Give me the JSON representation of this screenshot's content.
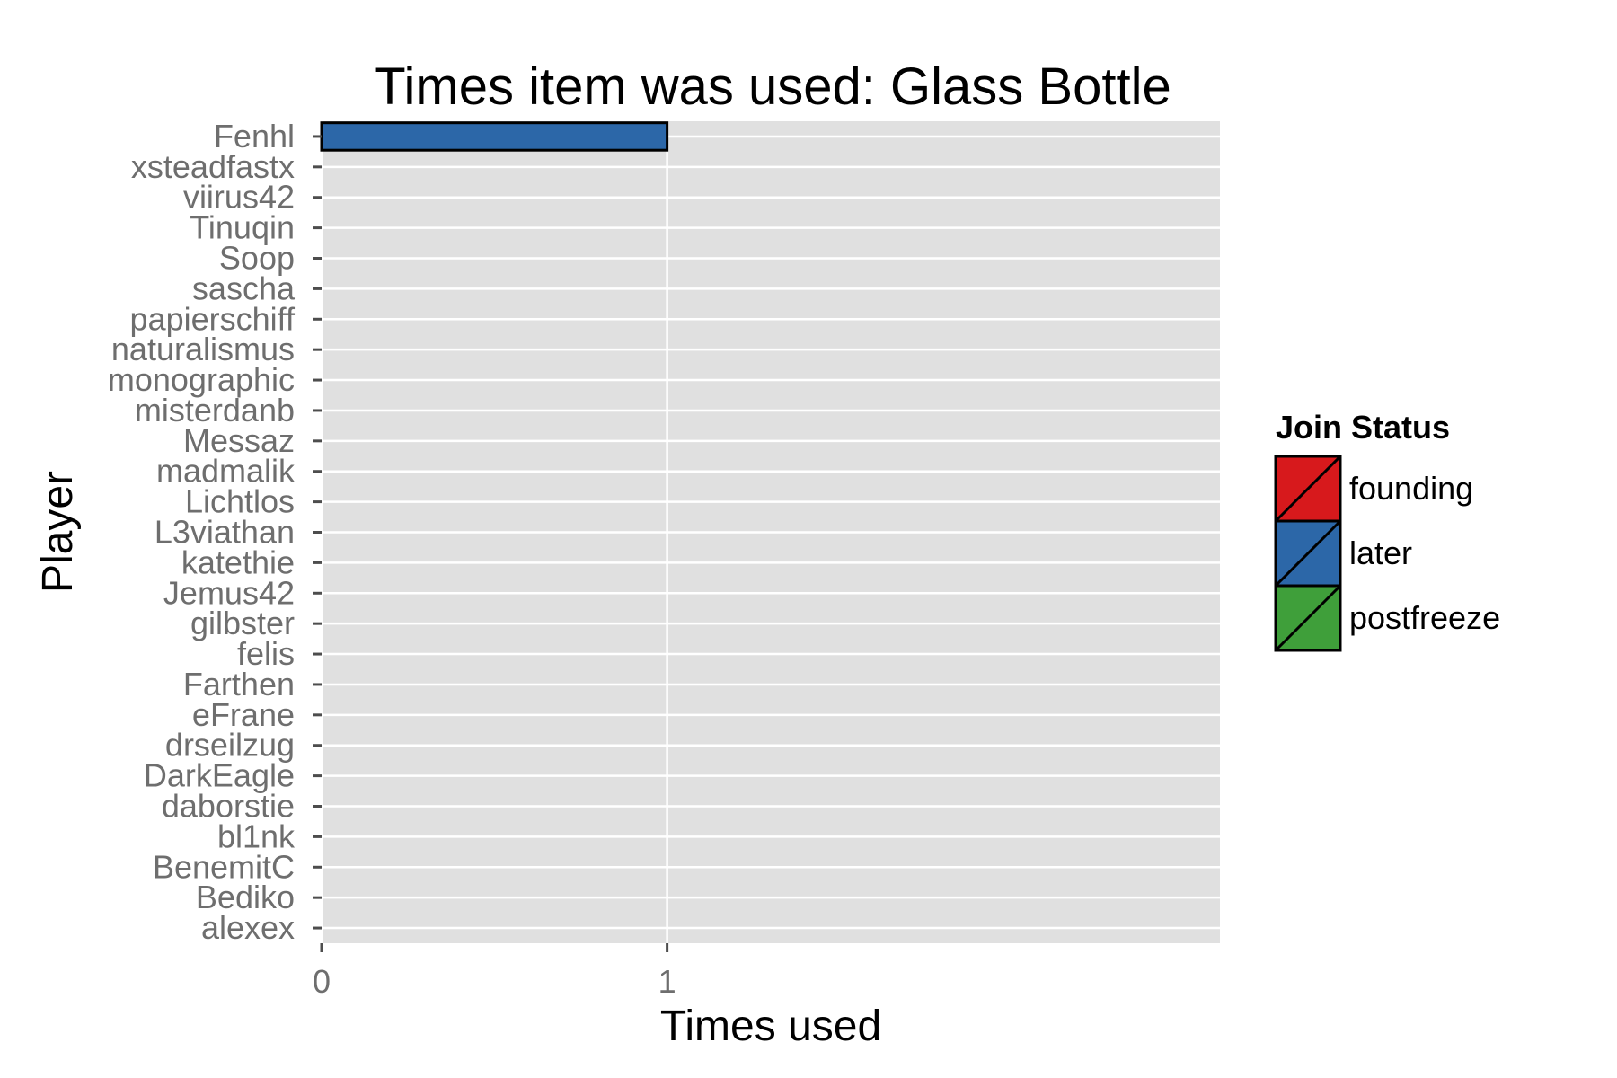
{
  "chart_data": {
    "type": "bar",
    "orientation": "horizontal",
    "title": "Times item was used: Glass Bottle",
    "xlabel": "Times used",
    "ylabel": "Player",
    "xlim": [
      0,
      2.6
    ],
    "xticks": [
      0,
      1
    ],
    "categories": [
      "alexex",
      "Bediko",
      "BenemitC",
      "bl1nk",
      "daborstie",
      "DarkEagle",
      "drseilzug",
      "eFrane",
      "Farthen",
      "felis",
      "gilbster",
      "Jemus42",
      "katethie",
      "L3viathan",
      "Lichtlos",
      "madmalik",
      "Messaz",
      "misterdanb",
      "monographic",
      "naturalismus",
      "papierschiff",
      "sascha",
      "Soop",
      "Tinuqin",
      "viirus42",
      "xsteadfastx",
      "Fenhl"
    ],
    "values": [
      0,
      0,
      0,
      0,
      0,
      0,
      0,
      0,
      0,
      0,
      0,
      0,
      0,
      0,
      0,
      0,
      0,
      0,
      0,
      0,
      0,
      0,
      0,
      0,
      0,
      0,
      1
    ],
    "join_status": [
      "",
      "",
      "",
      "",
      "",
      "",
      "",
      "",
      "",
      "",
      "",
      "",
      "",
      "",
      "",
      "",
      "",
      "",
      "",
      "",
      "",
      "",
      "",
      "",
      "",
      "",
      "later"
    ],
    "grid": true,
    "legend": {
      "title": "Join Status",
      "placement": "right",
      "entries": [
        {
          "label": "founding",
          "color": "#d7191c"
        },
        {
          "label": "later",
          "color": "#2c67a8"
        },
        {
          "label": "postfreeze",
          "color": "#3f9f3a"
        }
      ]
    },
    "panel_background": "#e0e0e0",
    "grid_color": "#ffffff"
  }
}
